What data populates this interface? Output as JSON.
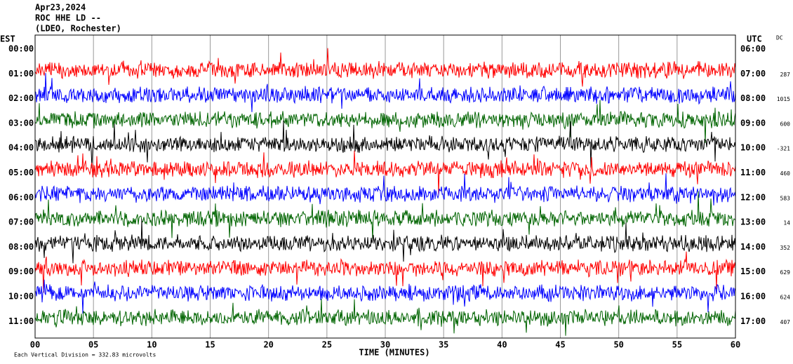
{
  "chart_data": {
    "type": "helicorder",
    "header": [
      "Apr23,2024",
      "ROC HHE LD --",
      "(LDEO, Rochester)"
    ],
    "left_axis_label": "EST",
    "right_axis_label": "UTC",
    "dc_label": "DC",
    "xlabel": "TIME (MINUTES)",
    "footnote": "Each Vertical Division = 332.83 microvolts",
    "xlim": [
      0,
      60
    ],
    "xticks": [
      {
        "value": 0,
        "label": "00"
      },
      {
        "value": 5,
        "label": "05"
      },
      10,
      15,
      20,
      25,
      30,
      35,
      40,
      45,
      50,
      55,
      60
    ],
    "rows": [
      {
        "est": "00:00",
        "utc": "06:00",
        "dc": null
      },
      {
        "est": "01:00",
        "utc": "07:00",
        "dc": 287
      },
      {
        "est": "02:00",
        "utc": "08:00",
        "dc": 1015
      },
      {
        "est": "03:00",
        "utc": "09:00",
        "dc": 600
      },
      {
        "est": "04:00",
        "utc": "10:00",
        "dc": -321
      },
      {
        "est": "05:00",
        "utc": "11:00",
        "dc": 460
      },
      {
        "est": "06:00",
        "utc": "12:00",
        "dc": 583
      },
      {
        "est": "07:00",
        "utc": "13:00",
        "dc": 14
      },
      {
        "est": "08:00",
        "utc": "14:00",
        "dc": 352
      },
      {
        "est": "09:00",
        "utc": "15:00",
        "dc": 629
      },
      {
        "est": "10:00",
        "utc": "16:00",
        "dc": 624
      },
      {
        "est": "11:00",
        "utc": "17:00",
        "dc": 407
      }
    ],
    "trace_colors": [
      "#ff0000",
      "#0000ff",
      "#006400",
      "#000000",
      "#ff0000",
      "#0000ff",
      "#006400",
      "#000000",
      "#ff0000",
      "#0000ff",
      "#006400"
    ],
    "grid": true
  }
}
